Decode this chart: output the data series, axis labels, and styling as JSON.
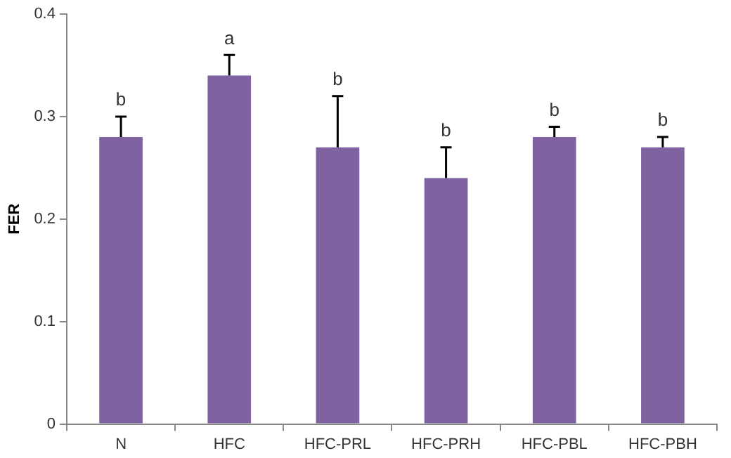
{
  "chart_data": {
    "type": "bar",
    "ylabel": "FER",
    "categories": [
      "N",
      "HFC",
      "HFC-PRL",
      "HFC-PRH",
      "HFC-PBL",
      "HFC-PBH"
    ],
    "values": [
      0.28,
      0.34,
      0.27,
      0.24,
      0.28,
      0.27
    ],
    "errors": [
      [
        0.28,
        0.3
      ],
      [
        0.34,
        0.36
      ],
      [
        0.27,
        0.32
      ],
      [
        0.24,
        0.27
      ],
      [
        0.28,
        0.29
      ],
      [
        0.27,
        0.28
      ]
    ],
    "color": "#7f63a1",
    "ylim": [
      0,
      0.4
    ],
    "yticks": [
      0,
      0.1,
      0.2,
      0.3,
      0.4
    ],
    "grid": false,
    "annotations": [
      {
        "text": "b",
        "x": "N",
        "y": 0.3
      },
      {
        "text": "a",
        "x": "HFC",
        "y": 0.36
      },
      {
        "text": "b",
        "x": "HFC-PRL",
        "y": 0.32
      },
      {
        "text": "b",
        "x": "HFC-PRH",
        "y": 0.27
      },
      {
        "text": "b",
        "x": "HFC-PBL",
        "y": 0.29
      },
      {
        "text": "b",
        "x": "HFC-PBH",
        "y": 0.28
      }
    ]
  }
}
